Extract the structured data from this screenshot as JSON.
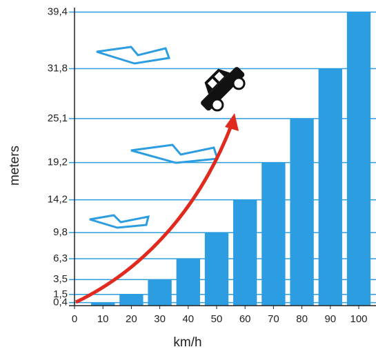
{
  "chart_data": {
    "type": "bar",
    "x_label": "km/h",
    "y_label": "meters",
    "x": [
      10,
      20,
      30,
      40,
      50,
      60,
      70,
      80,
      90,
      100
    ],
    "values": [
      0.4,
      1.5,
      3.5,
      6.3,
      9.8,
      14.2,
      19.2,
      25.1,
      31.8,
      39.4
    ],
    "color": "#2b9de0",
    "xlim": [
      0,
      100
    ],
    "xticks": [
      0,
      10,
      20,
      30,
      40,
      50,
      60,
      70,
      80,
      90,
      100
    ],
    "ylim": [
      0,
      40
    ],
    "yticks": [
      {
        "value": 0.4,
        "label": "0,4"
      },
      {
        "value": 1.5,
        "label": "1,5"
      },
      {
        "value": 3.5,
        "label": "3,5"
      },
      {
        "value": 6.3,
        "label": "6,3"
      },
      {
        "value": 9.8,
        "label": "9,8"
      },
      {
        "value": 14.2,
        "label": "14,2"
      },
      {
        "value": 19.2,
        "label": "19,2"
      },
      {
        "value": 25.1,
        "label": "25,1"
      },
      {
        "value": 31.8,
        "label": "31,8"
      },
      {
        "value": 39.4,
        "label": "39,4"
      }
    ],
    "grid": true
  }
}
